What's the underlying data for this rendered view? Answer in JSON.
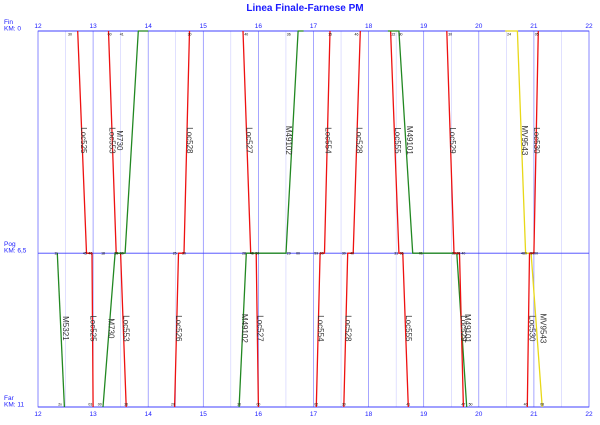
{
  "title": "Linea Finale-Farnese PM",
  "colors": {
    "grid": "#8080ff",
    "station_line": "#4040ff",
    "text": "#1a1aff"
  },
  "stations": [
    {
      "name": "Fin",
      "km_label": "KM: 0",
      "km": 0
    },
    {
      "name": "Pog",
      "km_label": "KM: 6,5",
      "km": 6.5
    },
    {
      "name": "Far",
      "km_label": "KM: 11",
      "km": 11
    }
  ],
  "chart_data": {
    "type": "line",
    "title": "Linea Finale-Farnese PM",
    "x_range": [
      12,
      22
    ],
    "x_ticks": [
      "12",
      "13",
      "14",
      "15",
      "16",
      "17",
      "18",
      "19",
      "20",
      "21",
      "22"
    ],
    "y_range": [
      0,
      11
    ],
    "y_reversed": true,
    "series": [
      {
        "name": "Loc525",
        "color": "#ee1111",
        "points": [
          [
            12.72,
            0
          ],
          [
            12.88,
            6.5
          ],
          [
            12.98,
            6.5
          ],
          [
            13.0,
            11
          ]
        ]
      },
      {
        "name": "M5321",
        "color": "#228822",
        "points": [
          [
            12.35,
            6.5
          ],
          [
            12.48,
            11
          ]
        ]
      },
      {
        "name": "Loc553",
        "color": "#ee1111",
        "points": [
          [
            13.28,
            0
          ],
          [
            13.42,
            6.5
          ],
          [
            13.5,
            6.5
          ],
          [
            13.6,
            11
          ]
        ]
      },
      {
        "name": "M730",
        "color": "#228822",
        "points": [
          [
            13.18,
            11
          ],
          [
            13.4,
            6.5
          ],
          [
            13.58,
            6.5
          ],
          [
            13.82,
            0
          ],
          [
            14.0,
            0
          ]
        ]
      },
      {
        "name": "Loc526",
        "color": "#ee1111",
        "points": [
          [
            14.48,
            11
          ],
          [
            14.55,
            6.5
          ],
          [
            14.65,
            6.5
          ],
          [
            14.75,
            0
          ]
        ]
      },
      {
        "name": "Loc527",
        "color": "#ee1111",
        "points": [
          [
            15.72,
            0
          ],
          [
            15.86,
            6.5
          ],
          [
            15.96,
            6.5
          ],
          [
            16.0,
            11
          ]
        ]
      },
      {
        "name": "M49102",
        "color": "#228822",
        "points": [
          [
            15.65,
            11
          ],
          [
            15.78,
            6.5
          ],
          [
            16.5,
            6.5
          ],
          [
            16.72,
            0
          ],
          [
            16.82,
            0
          ]
        ]
      },
      {
        "name": "Loc554",
        "color": "#ee1111",
        "points": [
          [
            17.05,
            11
          ],
          [
            17.12,
            6.5
          ],
          [
            17.2,
            6.5
          ],
          [
            17.3,
            0
          ]
        ]
      },
      {
        "name": "Loc528",
        "color": "#ee1111",
        "points": [
          [
            17.55,
            11
          ],
          [
            17.62,
            6.5
          ],
          [
            17.72,
            6.5
          ],
          [
            17.85,
            0
          ]
        ]
      },
      {
        "name": "Loc555",
        "color": "#ee1111",
        "points": [
          [
            18.4,
            0
          ],
          [
            18.55,
            6.5
          ],
          [
            18.62,
            6.5
          ],
          [
            18.72,
            11
          ]
        ]
      },
      {
        "name": "M49101",
        "color": "#228822",
        "points": [
          [
            18.35,
            0
          ],
          [
            18.55,
            0
          ],
          [
            18.8,
            6.5
          ],
          [
            19.6,
            6.5
          ],
          [
            19.78,
            11
          ]
        ]
      },
      {
        "name": "Loc529",
        "color": "#ee1111",
        "points": [
          [
            19.42,
            0
          ],
          [
            19.55,
            6.5
          ],
          [
            19.65,
            6.5
          ],
          [
            19.72,
            11
          ]
        ]
      },
      {
        "name": "MV9543",
        "color": "#e8d818",
        "points": [
          [
            20.48,
            0
          ],
          [
            20.7,
            0
          ],
          [
            20.85,
            6.5
          ],
          [
            20.95,
            6.5
          ],
          [
            21.15,
            11
          ]
        ]
      },
      {
        "name": "Loc530",
        "color": "#ee1111",
        "points": [
          [
            20.88,
            11
          ],
          [
            20.92,
            6.5
          ],
          [
            21.0,
            6.5
          ],
          [
            21.08,
            0
          ]
        ]
      }
    ],
    "labels": [
      {
        "text": "Loc525",
        "x": 12.78,
        "km": 3.2
      },
      {
        "text": "M5321",
        "x": 12.45,
        "km": 8.7
      },
      {
        "text": "Loc525",
        "x": 12.95,
        "km": 8.7
      },
      {
        "text": "Loc553",
        "x": 13.3,
        "km": 3.2
      },
      {
        "text": "M730",
        "x": 13.43,
        "km": 3.2
      },
      {
        "text": "M730",
        "x": 13.28,
        "km": 8.7
      },
      {
        "text": "Loc553",
        "x": 13.55,
        "km": 8.7
      },
      {
        "text": "Loc528",
        "x": 14.7,
        "km": 3.2
      },
      {
        "text": "Loc526",
        "x": 14.5,
        "km": 8.7
      },
      {
        "text": "Loc527",
        "x": 15.78,
        "km": 3.2
      },
      {
        "text": "M49102",
        "x": 16.5,
        "km": 3.2
      },
      {
        "text": "M49102",
        "x": 15.7,
        "km": 8.7
      },
      {
        "text": "Loc527",
        "x": 15.98,
        "km": 8.7
      },
      {
        "text": "Loc554",
        "x": 17.22,
        "km": 3.2
      },
      {
        "text": "Loc528",
        "x": 17.78,
        "km": 3.2
      },
      {
        "text": "Loc554",
        "x": 17.08,
        "km": 8.7
      },
      {
        "text": "Loc528",
        "x": 17.58,
        "km": 8.7
      },
      {
        "text": "Loc555",
        "x": 18.48,
        "km": 3.2
      },
      {
        "text": "M49101",
        "x": 18.7,
        "km": 3.2
      },
      {
        "text": "Loc555",
        "x": 18.68,
        "km": 8.7
      },
      {
        "text": "Loc529",
        "x": 19.48,
        "km": 3.2
      },
      {
        "text": "Loc529",
        "x": 19.68,
        "km": 8.7
      },
      {
        "text": "M49101",
        "x": 19.75,
        "km": 8.7
      },
      {
        "text": "MV9543",
        "x": 20.78,
        "km": 3.2
      },
      {
        "text": "Loc530",
        "x": 21.0,
        "km": 3.2
      },
      {
        "text": "Loc530",
        "x": 20.92,
        "km": 8.7
      },
      {
        "text": "MV9543",
        "x": 21.12,
        "km": 8.7
      }
    ],
    "minute_marks": [
      {
        "text": "30",
        "x": 12.58,
        "km": 0
      },
      {
        "text": "00",
        "x": 13.3,
        "km": 0
      },
      {
        "text": "41",
        "x": 13.52,
        "km": 0
      },
      {
        "text": "30",
        "x": 14.75,
        "km": 0
      },
      {
        "text": "40",
        "x": 15.78,
        "km": 0
      },
      {
        "text": "36",
        "x": 16.55,
        "km": 0
      },
      {
        "text": "15",
        "x": 17.3,
        "km": 0
      },
      {
        "text": "46",
        "x": 17.78,
        "km": 0
      },
      {
        "text": "22",
        "x": 18.45,
        "km": 0
      },
      {
        "text": "30",
        "x": 18.58,
        "km": 0
      },
      {
        "text": "30",
        "x": 19.48,
        "km": 0
      },
      {
        "text": "24",
        "x": 20.55,
        "km": 0
      },
      {
        "text": "05",
        "x": 21.05,
        "km": 0
      },
      {
        "text": "11",
        "x": 12.33,
        "km": 6.5
      },
      {
        "text": "45",
        "x": 12.85,
        "km": 6.5
      },
      {
        "text": "46",
        "x": 12.95,
        "km": 6.5
      },
      {
        "text": "18",
        "x": 13.18,
        "km": 6.5
      },
      {
        "text": "28",
        "x": 13.42,
        "km": 6.5
      },
      {
        "text": "30",
        "x": 13.52,
        "km": 6.5
      },
      {
        "text": "25",
        "x": 14.48,
        "km": 6.5
      },
      {
        "text": "30",
        "x": 14.65,
        "km": 6.5
      },
      {
        "text": "28",
        "x": 15.74,
        "km": 6.5
      },
      {
        "text": "48",
        "x": 15.88,
        "km": 6.5
      },
      {
        "text": "50",
        "x": 15.98,
        "km": 6.5
      },
      {
        "text": "29",
        "x": 16.55,
        "km": 6.5
      },
      {
        "text": "00",
        "x": 16.72,
        "km": 6.5
      },
      {
        "text": "59",
        "x": 17.05,
        "km": 6.5
      },
      {
        "text": "00",
        "x": 17.15,
        "km": 6.5
      },
      {
        "text": "30",
        "x": 17.55,
        "km": 6.5
      },
      {
        "text": "40",
        "x": 17.7,
        "km": 6.5
      },
      {
        "text": "31",
        "x": 18.5,
        "km": 6.5
      },
      {
        "text": "36",
        "x": 18.6,
        "km": 6.5
      },
      {
        "text": "01",
        "x": 18.95,
        "km": 6.5
      },
      {
        "text": "32",
        "x": 19.55,
        "km": 6.5
      },
      {
        "text": "38",
        "x": 19.63,
        "km": 6.5
      },
      {
        "text": "40",
        "x": 19.72,
        "km": 6.5
      },
      {
        "text": "480",
        "x": 20.82,
        "km": 6.5
      },
      {
        "text": "50",
        "x": 20.97,
        "km": 6.5
      },
      {
        "text": "00",
        "x": 21.04,
        "km": 6.5
      },
      {
        "text": "2x",
        "x": 12.4,
        "km": 11
      },
      {
        "text": "03",
        "x": 12.95,
        "km": 11
      },
      {
        "text": "00",
        "x": 13.12,
        "km": 11
      },
      {
        "text": "36",
        "x": 13.6,
        "km": 11
      },
      {
        "text": "20",
        "x": 14.45,
        "km": 11
      },
      {
        "text": "30",
        "x": 15.65,
        "km": 11
      },
      {
        "text": "00",
        "x": 16.0,
        "km": 11
      },
      {
        "text": "02",
        "x": 17.05,
        "km": 11
      },
      {
        "text": "30",
        "x": 17.55,
        "km": 11
      },
      {
        "text": "41",
        "x": 18.72,
        "km": 11
      },
      {
        "text": "47",
        "x": 19.72,
        "km": 11
      },
      {
        "text": "50",
        "x": 19.85,
        "km": 11
      },
      {
        "text": "40",
        "x": 20.85,
        "km": 11
      },
      {
        "text": "08",
        "x": 21.15,
        "km": 11
      }
    ]
  }
}
